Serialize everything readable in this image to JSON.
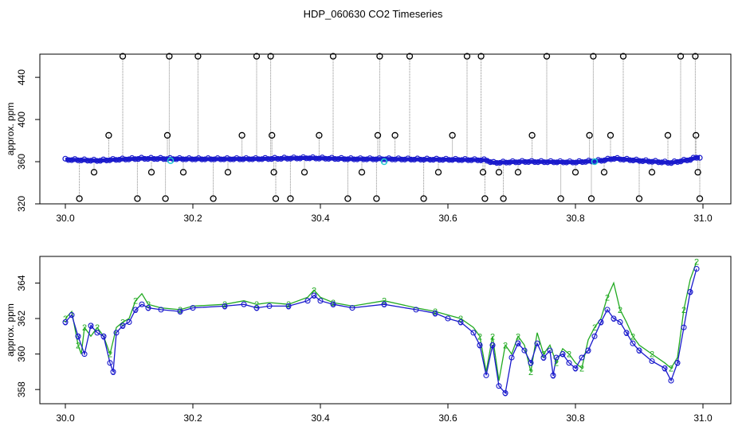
{
  "title": "HDP_060630  CO2 Timeseries",
  "chart_data": [
    {
      "type": "scatter",
      "ylabel": "approx. ppm",
      "xlim": [
        30.0,
        31.0
      ],
      "ylim": [
        320,
        462
      ],
      "x_ticks": [
        "30.0",
        "30.2",
        "30.4",
        "30.6",
        "30.8",
        "31.0"
      ],
      "y_ticks": [
        "320",
        "360",
        "400",
        "440"
      ],
      "y_tick_values": [
        320,
        360,
        400,
        440
      ],
      "x_tick_values": [
        30.0,
        30.2,
        30.4,
        30.6,
        30.8,
        31.0
      ],
      "baseline": [
        [
          30.0,
          362
        ],
        [
          30.05,
          361
        ],
        [
          30.08,
          362
        ],
        [
          30.12,
          363
        ],
        [
          30.2,
          362.5
        ],
        [
          30.3,
          362.6
        ],
        [
          30.38,
          363.5
        ],
        [
          30.45,
          362.5
        ],
        [
          30.5,
          362.5
        ],
        [
          30.6,
          362
        ],
        [
          30.66,
          361.5
        ],
        [
          30.67,
          359
        ],
        [
          30.72,
          360
        ],
        [
          30.8,
          359.5
        ],
        [
          30.84,
          361
        ],
        [
          30.86,
          363
        ],
        [
          30.9,
          361
        ],
        [
          30.95,
          359
        ],
        [
          30.98,
          362
        ],
        [
          30.99,
          364
        ]
      ],
      "cyan_points": [
        [
          30.165,
          361
        ],
        [
          30.5,
          360
        ],
        [
          30.83,
          360
        ]
      ],
      "outliers": [
        [
          30.022,
          325
        ],
        [
          30.045,
          350
        ],
        [
          30.068,
          385
        ],
        [
          30.09,
          460
        ],
        [
          30.113,
          325
        ],
        [
          30.135,
          350
        ],
        [
          30.157,
          325
        ],
        [
          30.16,
          385
        ],
        [
          30.163,
          460
        ],
        [
          30.185,
          350
        ],
        [
          30.208,
          460
        ],
        [
          30.232,
          325
        ],
        [
          30.255,
          350
        ],
        [
          30.277,
          385
        ],
        [
          30.3,
          460
        ],
        [
          30.322,
          460
        ],
        [
          30.324,
          385
        ],
        [
          30.327,
          350
        ],
        [
          30.33,
          325
        ],
        [
          30.353,
          325
        ],
        [
          30.375,
          350
        ],
        [
          30.398,
          385
        ],
        [
          30.42,
          460
        ],
        [
          30.443,
          325
        ],
        [
          30.465,
          350
        ],
        [
          30.488,
          325
        ],
        [
          30.49,
          385
        ],
        [
          30.493,
          460
        ],
        [
          30.517,
          385
        ],
        [
          30.54,
          460
        ],
        [
          30.562,
          325
        ],
        [
          30.585,
          350
        ],
        [
          30.607,
          385
        ],
        [
          30.63,
          460
        ],
        [
          30.652,
          460
        ],
        [
          30.655,
          350
        ],
        [
          30.658,
          325
        ],
        [
          30.68,
          350
        ],
        [
          30.687,
          325
        ],
        [
          30.71,
          350
        ],
        [
          30.732,
          385
        ],
        [
          30.755,
          460
        ],
        [
          30.777,
          325
        ],
        [
          30.8,
          350
        ],
        [
          30.822,
          385
        ],
        [
          30.825,
          325
        ],
        [
          30.828,
          460
        ],
        [
          30.845,
          350
        ],
        [
          30.855,
          385
        ],
        [
          30.875,
          460
        ],
        [
          30.9,
          325
        ],
        [
          30.92,
          350
        ],
        [
          30.945,
          385
        ],
        [
          30.965,
          460
        ],
        [
          30.988,
          460
        ],
        [
          30.989,
          385
        ],
        [
          30.992,
          350
        ],
        [
          30.995,
          325
        ]
      ]
    },
    {
      "type": "line",
      "ylabel": "approx. ppm",
      "xlim": [
        30.0,
        31.0
      ],
      "ylim": [
        357.2,
        365.5
      ],
      "x_ticks": [
        "30.0",
        "30.2",
        "30.4",
        "30.6",
        "30.8",
        "31.0"
      ],
      "y_ticks": [
        "358",
        "360",
        "362",
        "364"
      ],
      "y_tick_values": [
        358,
        360,
        362,
        364
      ],
      "x_tick_values": [
        30.0,
        30.2,
        30.4,
        30.6,
        30.8,
        31.0
      ],
      "series": [
        {
          "name": "2",
          "color": "#22aa22",
          "points": [
            [
              30.0,
              362
            ],
            [
              30.01,
              362.4
            ],
            [
              30.02,
              360.5
            ],
            [
              30.025,
              360
            ],
            [
              30.03,
              361.5
            ],
            [
              30.04,
              361
            ],
            [
              30.05,
              361.5
            ],
            [
              30.06,
              361
            ],
            [
              30.07,
              360
            ],
            [
              30.08,
              361.5
            ],
            [
              30.09,
              361.8
            ],
            [
              30.1,
              362
            ],
            [
              30.11,
              363
            ],
            [
              30.12,
              363.4
            ],
            [
              30.13,
              362.8
            ],
            [
              30.15,
              362.6
            ],
            [
              30.18,
              362.5
            ],
            [
              30.2,
              362.7
            ],
            [
              30.25,
              362.8
            ],
            [
              30.28,
              363
            ],
            [
              30.3,
              362.8
            ],
            [
              30.32,
              362.9
            ],
            [
              30.35,
              362.8
            ],
            [
              30.38,
              363.2
            ],
            [
              30.39,
              363.6
            ],
            [
              30.4,
              363.2
            ],
            [
              30.42,
              362.9
            ],
            [
              30.45,
              362.7
            ],
            [
              30.5,
              363
            ],
            [
              30.55,
              362.6
            ],
            [
              30.58,
              362.4
            ],
            [
              30.6,
              362.2
            ],
            [
              30.62,
              362
            ],
            [
              30.64,
              361.5
            ],
            [
              30.65,
              361
            ],
            [
              30.66,
              359
            ],
            [
              30.67,
              361
            ],
            [
              30.68,
              358.5
            ],
            [
              30.69,
              360.5
            ],
            [
              30.7,
              360
            ],
            [
              30.71,
              361
            ],
            [
              30.72,
              360.5
            ],
            [
              30.73,
              359
            ],
            [
              30.74,
              361.2
            ],
            [
              30.75,
              360
            ],
            [
              30.76,
              360.5
            ],
            [
              30.77,
              359.5
            ],
            [
              30.78,
              360.3
            ],
            [
              30.79,
              360
            ],
            [
              30.8,
              359.5
            ],
            [
              30.81,
              359.2
            ],
            [
              30.82,
              360.8
            ],
            [
              30.83,
              361.5
            ],
            [
              30.84,
              362
            ],
            [
              30.85,
              363.2
            ],
            [
              30.86,
              364
            ],
            [
              30.87,
              362.5
            ],
            [
              30.88,
              361.8
            ],
            [
              30.89,
              361
            ],
            [
              30.9,
              360.5
            ],
            [
              30.92,
              360
            ],
            [
              30.94,
              359.5
            ],
            [
              30.95,
              359.2
            ],
            [
              30.96,
              359.8
            ],
            [
              30.97,
              362.5
            ],
            [
              30.98,
              364.2
            ],
            [
              30.99,
              365.2
            ]
          ]
        },
        {
          "name": "3",
          "color": "#1a1acc",
          "points": [
            [
              30.0,
              361.8
            ],
            [
              30.01,
              362.2
            ],
            [
              30.02,
              361
            ],
            [
              30.03,
              360
            ],
            [
              30.04,
              361.6
            ],
            [
              30.05,
              361.2
            ],
            [
              30.06,
              361
            ],
            [
              30.07,
              359.5
            ],
            [
              30.075,
              359
            ],
            [
              30.08,
              361.2
            ],
            [
              30.09,
              361.6
            ],
            [
              30.1,
              361.8
            ],
            [
              30.11,
              362.5
            ],
            [
              30.12,
              362.8
            ],
            [
              30.13,
              362.6
            ],
            [
              30.15,
              362.5
            ],
            [
              30.18,
              362.4
            ],
            [
              30.2,
              362.6
            ],
            [
              30.25,
              362.7
            ],
            [
              30.28,
              362.8
            ],
            [
              30.3,
              362.6
            ],
            [
              30.32,
              362.7
            ],
            [
              30.35,
              362.7
            ],
            [
              30.38,
              363
            ],
            [
              30.39,
              363.3
            ],
            [
              30.4,
              363
            ],
            [
              30.42,
              362.8
            ],
            [
              30.45,
              362.6
            ],
            [
              30.5,
              362.8
            ],
            [
              30.55,
              362.5
            ],
            [
              30.58,
              362.3
            ],
            [
              30.6,
              362
            ],
            [
              30.62,
              361.8
            ],
            [
              30.64,
              361.2
            ],
            [
              30.65,
              360.5
            ],
            [
              30.66,
              358.8
            ],
            [
              30.67,
              360.5
            ],
            [
              30.68,
              358.2
            ],
            [
              30.69,
              357.8
            ],
            [
              30.7,
              359.8
            ],
            [
              30.71,
              360.6
            ],
            [
              30.72,
              360.2
            ],
            [
              30.73,
              359.5
            ],
            [
              30.74,
              360.6
            ],
            [
              30.75,
              359.8
            ],
            [
              30.76,
              360.2
            ],
            [
              30.765,
              358.8
            ],
            [
              30.77,
              359.8
            ],
            [
              30.78,
              360
            ],
            [
              30.79,
              359.5
            ],
            [
              30.8,
              359.2
            ],
            [
              30.81,
              359.8
            ],
            [
              30.82,
              360.2
            ],
            [
              30.83,
              361
            ],
            [
              30.84,
              361.8
            ],
            [
              30.85,
              362.5
            ],
            [
              30.86,
              362
            ],
            [
              30.87,
              361.8
            ],
            [
              30.88,
              361.2
            ],
            [
              30.89,
              360.6
            ],
            [
              30.9,
              360.2
            ],
            [
              30.92,
              359.6
            ],
            [
              30.94,
              359.2
            ],
            [
              30.95,
              358.5
            ],
            [
              30.96,
              359.5
            ],
            [
              30.97,
              361.5
            ],
            [
              30.98,
              363.5
            ],
            [
              30.99,
              364.8
            ]
          ]
        }
      ]
    }
  ]
}
